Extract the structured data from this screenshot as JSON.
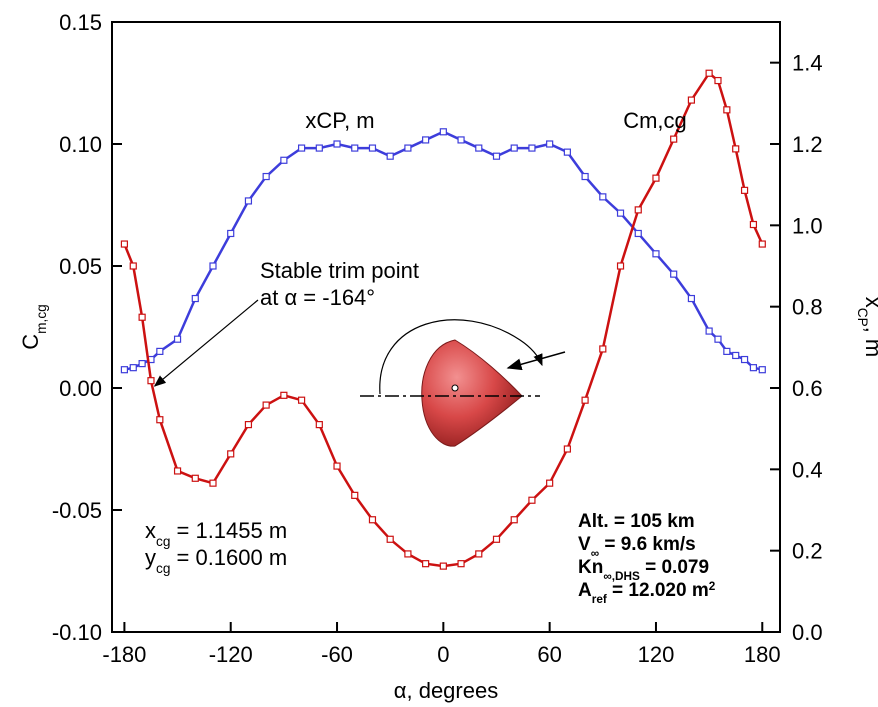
{
  "chart_data": {
    "type": "line",
    "xlabel": [
      {
        "text": "α, degrees"
      }
    ],
    "ylabel": [
      {
        "text": "C"
      },
      {
        "text": "m,cg",
        "baseline": "sub"
      }
    ],
    "y2label": [
      {
        "text": "x"
      },
      {
        "text": "CP",
        "baseline": "sub"
      },
      {
        "text": ", m"
      }
    ],
    "xlim": [
      -187,
      190
    ],
    "xticks": [
      -180,
      -120,
      -60,
      0,
      60,
      120,
      180
    ],
    "ylim": [
      -0.1,
      0.15
    ],
    "yticks": [
      {
        "value": -0.1,
        "label": "-0.10"
      },
      -0.05,
      {
        "value": 0,
        "label": "0.00"
      },
      0.05,
      {
        "value": 0.1,
        "label": "0.10"
      },
      0.15
    ],
    "y2lim": [
      0,
      1.5
    ],
    "y2ticks": [
      {
        "value": 0,
        "label": "0.0"
      },
      0.2,
      0.4,
      0.6,
      0.8,
      {
        "value": 1,
        "label": "1.0"
      },
      1.2,
      1.4
    ],
    "x": [
      -180,
      -175,
      -170,
      -165,
      -160,
      -150,
      -140,
      -130,
      -120,
      -110,
      -100,
      -90,
      -80,
      -70,
      -60,
      -50,
      -40,
      -30,
      -20,
      -10,
      0,
      10,
      20,
      30,
      40,
      50,
      60,
      70,
      80,
      90,
      100,
      110,
      120,
      130,
      140,
      150,
      155,
      160,
      165,
      170,
      175,
      180
    ],
    "series": [
      {
        "name": "xCP, m",
        "color": "#3d3ddb",
        "axis": "y2",
        "values": [
          0.645,
          0.65,
          0.66,
          0.67,
          0.69,
          0.72,
          0.82,
          0.9,
          0.98,
          1.06,
          1.12,
          1.16,
          1.19,
          1.19,
          1.2,
          1.19,
          1.19,
          1.17,
          1.19,
          1.21,
          1.23,
          1.21,
          1.19,
          1.17,
          1.19,
          1.19,
          1.2,
          1.18,
          1.12,
          1.07,
          1.03,
          0.98,
          0.93,
          0.88,
          0.82,
          0.74,
          0.72,
          0.69,
          0.68,
          0.67,
          0.65,
          0.645
        ]
      },
      {
        "name": "Cm,cg",
        "color": "#cc1111",
        "values": [
          0.059,
          0.05,
          0.029,
          0.003,
          -0.013,
          -0.034,
          -0.037,
          -0.039,
          -0.027,
          -0.015,
          -0.007,
          -0.003,
          -0.005,
          -0.015,
          -0.032,
          -0.044,
          -0.054,
          -0.062,
          -0.068,
          -0.072,
          -0.073,
          -0.072,
          -0.068,
          -0.062,
          -0.054,
          -0.046,
          -0.039,
          -0.025,
          -0.005,
          0.016,
          0.05,
          0.073,
          0.086,
          0.102,
          0.118,
          0.129,
          0.126,
          0.114,
          0.098,
          0.081,
          0.067,
          0.059
        ]
      }
    ],
    "trim_annotation": {
      "lines": [
        "Stable trim point",
        "at α = -164°"
      ],
      "x": -164,
      "y": 0
    },
    "cg_annotation": [
      [
        {
          "text": "x"
        },
        {
          "text": "cg",
          "baseline": "sub"
        },
        {
          "text": " = 1.1455 m"
        }
      ],
      [
        {
          "text": "y"
        },
        {
          "text": "cg",
          "baseline": "sub"
        },
        {
          "text": " = 0.1600 m"
        }
      ]
    ],
    "conditions": [
      [
        {
          "text": "Alt. = 105 km"
        }
      ],
      [
        {
          "text": "V"
        },
        {
          "text": "∞",
          "baseline": "sub"
        },
        {
          "text": " = 9.6 km/s"
        }
      ],
      [
        {
          "text": "Kn"
        },
        {
          "text": "∞,DHS",
          "baseline": "sub"
        },
        {
          "text": " = 0.079"
        }
      ],
      [
        {
          "text": "A"
        },
        {
          "text": "ref",
          "baseline": "sub"
        },
        {
          "text": " = 12.020 m"
        },
        {
          "text": "2",
          "baseline": "super"
        }
      ]
    ]
  }
}
